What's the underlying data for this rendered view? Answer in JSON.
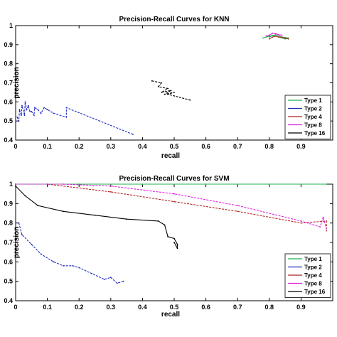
{
  "chart_data": [
    {
      "type": "line",
      "title": "Precision-Recall Curves for KNN",
      "xlabel": "recall",
      "ylabel": "precision",
      "xlim": [
        0,
        1
      ],
      "ylim": [
        0.4,
        1
      ],
      "x_ticks": [
        "0",
        "0.1",
        "0.2",
        "0.3",
        "0.4",
        "0.5",
        "0.6",
        "0.7",
        "0.8",
        "0.9"
      ],
      "y_ticks": [
        "0.4",
        "0.5",
        "0.6",
        "0.7",
        "0.8",
        "0.9",
        "1"
      ],
      "legend_position": "lower-right",
      "series": [
        {
          "name": "Type 1",
          "color": "#22b14c",
          "dashed": false,
          "x": [
            0.78,
            0.8,
            0.82,
            0.84,
            0.86,
            0.85,
            0.83,
            0.81,
            0.8
          ],
          "y": [
            0.935,
            0.945,
            0.952,
            0.94,
            0.935,
            0.93,
            0.94,
            0.948,
            0.94
          ]
        },
        {
          "name": "Type 2",
          "color": "#1f2dbf",
          "dashed": true,
          "x": [
            0.005,
            0.01,
            0.012,
            0.018,
            0.02,
            0.028,
            0.03,
            0.035,
            0.04,
            0.045,
            0.05,
            0.058,
            0.06,
            0.07,
            0.08,
            0.09,
            0.1,
            0.12,
            0.16,
            0.16,
            0.37
          ],
          "y": [
            0.52,
            0.5,
            0.56,
            0.53,
            0.58,
            0.53,
            0.6,
            0.56,
            0.58,
            0.55,
            0.55,
            0.53,
            0.57,
            0.56,
            0.54,
            0.57,
            0.56,
            0.54,
            0.52,
            0.57,
            0.43
          ]
        },
        {
          "name": "Type 4",
          "color": "#b22222",
          "dashed": false,
          "x": [
            0.8,
            0.81,
            0.82,
            0.83,
            0.84,
            0.85,
            0.86
          ],
          "y": [
            0.93,
            0.94,
            0.945,
            0.94,
            0.938,
            0.935,
            0.93
          ]
        },
        {
          "name": "Type 8",
          "color": "#e020e0",
          "dashed": false,
          "x": [
            0.79,
            0.8,
            0.81,
            0.82,
            0.83,
            0.84
          ],
          "y": [
            0.945,
            0.95,
            0.96,
            0.958,
            0.952,
            0.95
          ]
        },
        {
          "name": "Type 16",
          "color": "#000000",
          "dashed": true,
          "x": [
            0.43,
            0.46,
            0.45,
            0.48,
            0.46,
            0.49,
            0.47,
            0.5,
            0.48,
            0.55
          ],
          "y": [
            0.71,
            0.7,
            0.68,
            0.67,
            0.65,
            0.66,
            0.64,
            0.65,
            0.64,
            0.61
          ]
        }
      ]
    },
    {
      "type": "line",
      "title": "Precision-Recall Curves for SVM",
      "xlabel": "recall",
      "ylabel": "precision",
      "xlim": [
        0,
        1
      ],
      "ylim": [
        0.4,
        1
      ],
      "x_ticks": [
        "0",
        "0.1",
        "0.2",
        "0.3",
        "0.4",
        "0.5",
        "0.6",
        "0.7",
        "0.8",
        "0.9"
      ],
      "y_ticks": [
        "0.4",
        "0.5",
        "0.6",
        "0.7",
        "0.8",
        "0.9",
        "1"
      ],
      "legend_position": "lower-right",
      "series": [
        {
          "name": "Type 1",
          "color": "#22b14c",
          "dashed": false,
          "x": [
            0.0,
            0.2,
            0.4,
            0.6,
            0.8,
            0.98
          ],
          "y": [
            1.0,
            1.0,
            1.0,
            1.0,
            1.0,
            1.0
          ]
        },
        {
          "name": "Type 2",
          "color": "#1f2dbf",
          "dashed": true,
          "x": [
            0.01,
            0.02,
            0.05,
            0.08,
            0.12,
            0.15,
            0.18,
            0.2,
            0.24,
            0.28,
            0.3,
            0.32,
            0.34
          ],
          "y": [
            0.8,
            0.74,
            0.69,
            0.64,
            0.6,
            0.58,
            0.58,
            0.57,
            0.54,
            0.51,
            0.52,
            0.49,
            0.5
          ]
        },
        {
          "name": "Type 4",
          "color": "#b22222",
          "dashed": true,
          "x": [
            0.0,
            0.1,
            0.3,
            0.5,
            0.7,
            0.9,
            0.98,
            0.98
          ],
          "y": [
            1.0,
            1.0,
            0.96,
            0.91,
            0.86,
            0.8,
            0.81,
            0.76
          ]
        },
        {
          "name": "Type 8",
          "color": "#e020e0",
          "dashed": true,
          "x": [
            0.0,
            0.15,
            0.3,
            0.5,
            0.7,
            0.9,
            0.96,
            0.97,
            0.98
          ],
          "y": [
            1.0,
            1.0,
            0.99,
            0.95,
            0.89,
            0.81,
            0.78,
            0.83,
            0.77
          ]
        },
        {
          "name": "Type 16",
          "color": "#000000",
          "dashed": false,
          "x": [
            0.0,
            0.03,
            0.07,
            0.15,
            0.25,
            0.35,
            0.45,
            0.47,
            0.48,
            0.5,
            0.51,
            0.51,
            0.5
          ],
          "y": [
            0.99,
            0.94,
            0.89,
            0.86,
            0.84,
            0.82,
            0.81,
            0.79,
            0.73,
            0.72,
            0.69,
            0.67,
            0.7
          ]
        }
      ]
    }
  ]
}
